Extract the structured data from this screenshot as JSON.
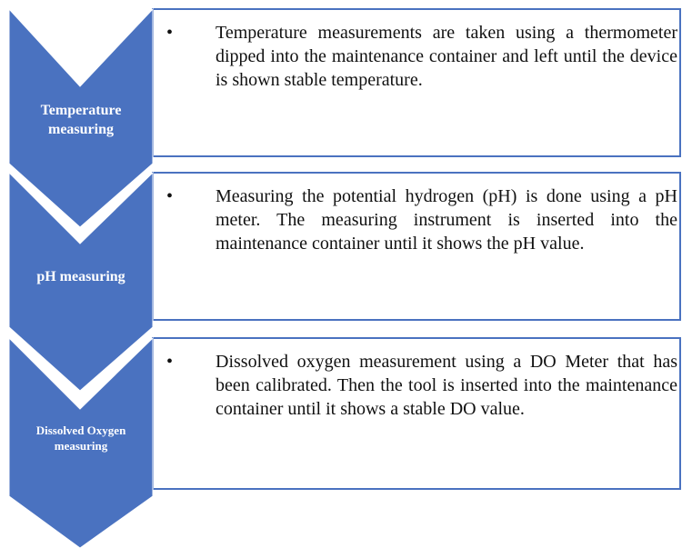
{
  "steps": [
    {
      "label": "Temperature measuring",
      "text": "Temperature measurements are taken using a thermometer dipped into the maintenance container and left until the device is shown stable temperature."
    },
    {
      "label": "pH measuring",
      "text": "Measuring the potential hydrogen (pH) is done using a pH meter. The measuring instrument is inserted into the maintenance container until it shows the pH value."
    },
    {
      "label": "Dissolved Oxygen measuring",
      "text": "Dissolved oxygen measurement using a DO Meter that has been calibrated. Then the tool is inserted into the maintenance container until it shows a stable DO value."
    }
  ]
}
